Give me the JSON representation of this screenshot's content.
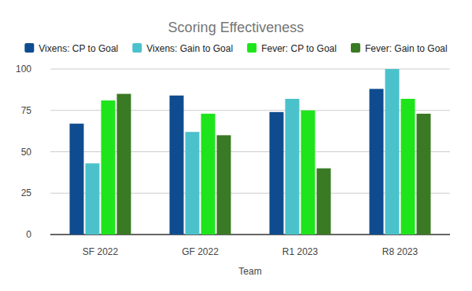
{
  "chart_data": {
    "type": "bar",
    "title": "Scoring Effectiveness",
    "x_label": "Team",
    "categories": [
      "SF 2022",
      "GF 2022",
      "R1 2023",
      "R8 2023"
    ],
    "series": [
      {
        "name": "Vixens: CP to Goal",
        "color": "#0f4c8f",
        "values": [
          67,
          84,
          74,
          88
        ]
      },
      {
        "name": "Vixens: Gain to Goal",
        "color": "#4bc2cb",
        "values": [
          43,
          62,
          82,
          100
        ]
      },
      {
        "name": "Fever: CP to Goal",
        "color": "#1ee51b",
        "values": [
          81,
          73,
          75,
          82
        ]
      },
      {
        "name": "Fever: Gain to Goal",
        "color": "#3a7a24",
        "values": [
          85,
          60,
          40,
          73
        ]
      }
    ],
    "ylim": [
      0,
      100
    ],
    "yticks": [
      0,
      25,
      50,
      75,
      100
    ],
    "grid": true,
    "legend": "top"
  }
}
